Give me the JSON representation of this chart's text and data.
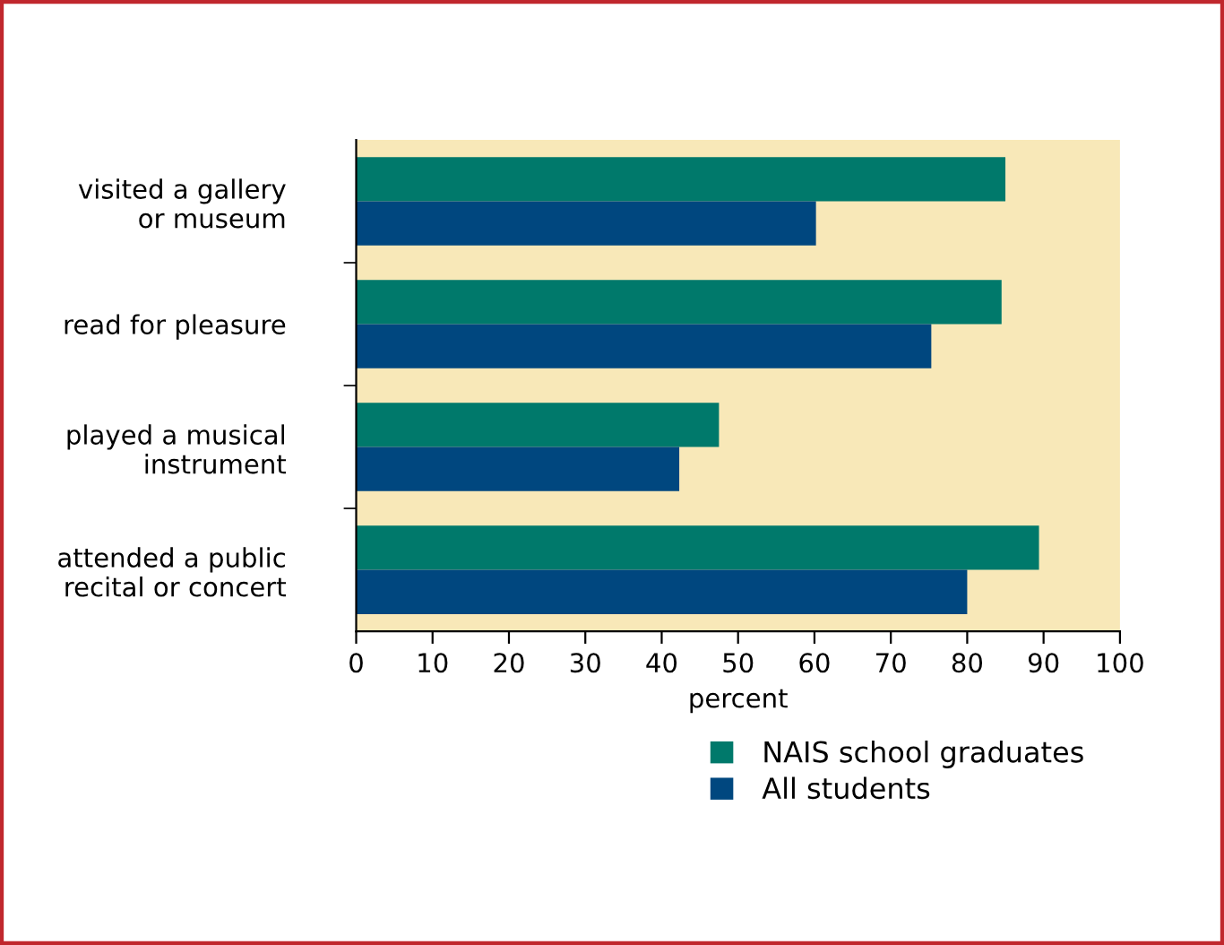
{
  "chart_data": {
    "type": "bar",
    "orientation": "horizontal",
    "xlabel": "percent",
    "categories": [
      "visited a gallery\nor museum",
      "read for pleasure",
      "played a musical\ninstrument",
      "attended a public\nrecital or concert"
    ],
    "series": [
      {
        "name": "NAIS school graduates",
        "color": "#00796b",
        "values": [
          85,
          84.5,
          47.5,
          89.4
        ]
      },
      {
        "name": "All students",
        "color": "#00477f",
        "values": [
          60.2,
          75.3,
          42.3,
          80
        ]
      }
    ],
    "xlim": [
      0,
      100
    ],
    "xticks": [
      0,
      10,
      20,
      30,
      40,
      50,
      60,
      70,
      80,
      90,
      100
    ],
    "grid": false,
    "legend": "bottom"
  }
}
